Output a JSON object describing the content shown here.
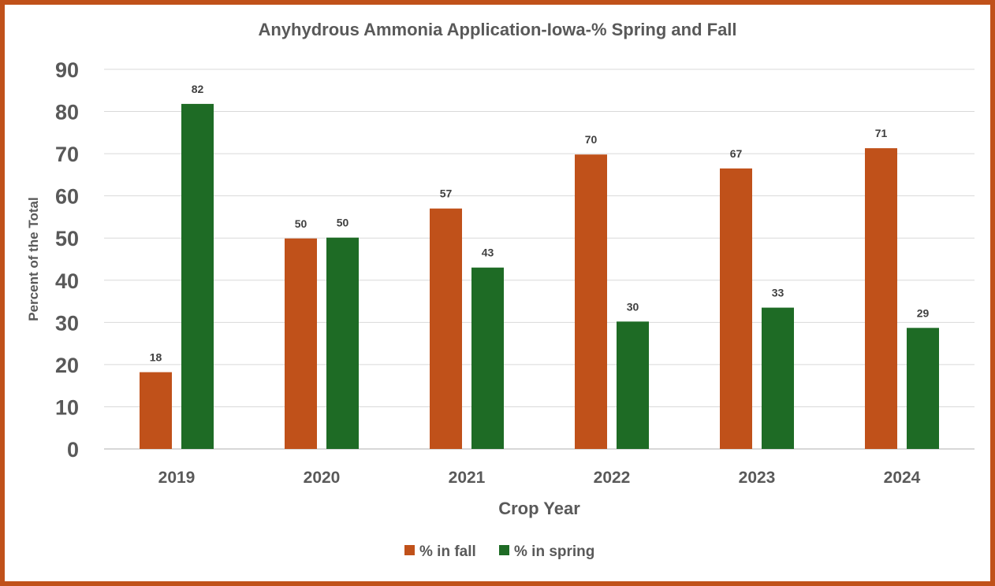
{
  "chart_data": {
    "type": "bar",
    "title": "Anyhydrous Ammonia Application-Iowa-% Spring and Fall",
    "xlabel": "Crop Year",
    "ylabel": "Percent of the Total",
    "ylim": [
      0,
      90
    ],
    "yticks": [
      0,
      10,
      20,
      30,
      40,
      50,
      60,
      70,
      80,
      90
    ],
    "grid": true,
    "legend_position": "bottom",
    "categories": [
      "2019",
      "2020",
      "2021",
      "2022",
      "2023",
      "2024"
    ],
    "series": [
      {
        "name": "% in fall",
        "color": "#c0511a",
        "values": [
          18.2,
          49.9,
          57.0,
          69.8,
          66.5,
          71.3
        ],
        "labels": [
          "18",
          "50",
          "57",
          "70",
          "67",
          "71"
        ]
      },
      {
        "name": "% in spring",
        "color": "#1e6b25",
        "values": [
          81.8,
          50.1,
          43.0,
          30.2,
          33.5,
          28.7
        ],
        "labels": [
          "82",
          "50",
          "43",
          "30",
          "33",
          "29"
        ]
      }
    ]
  }
}
